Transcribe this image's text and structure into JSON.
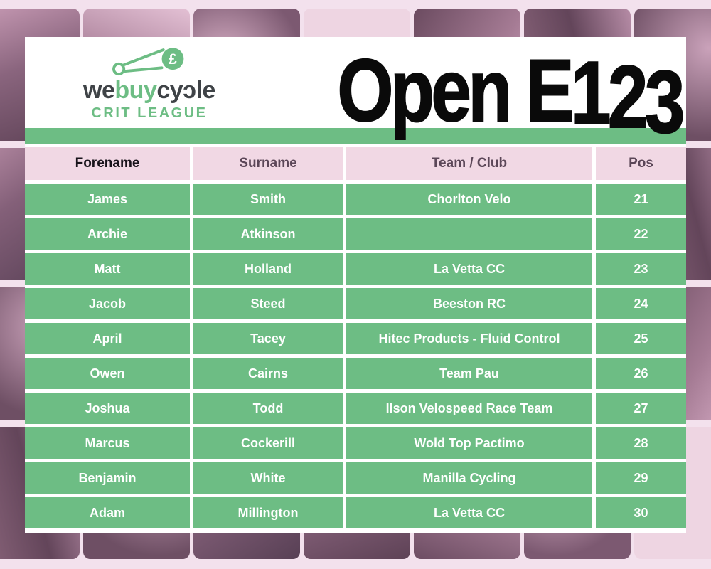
{
  "brand": {
    "word_we": "we",
    "word_buy": "buy",
    "word_cycle": "cyɔle",
    "tagline": "CRIT LEAGUE",
    "pound_symbol": "£"
  },
  "title": "Open E123",
  "table": {
    "headers": [
      "Forename",
      "Surname",
      "Team / Club",
      "Pos"
    ],
    "rows": [
      {
        "forename": "James",
        "surname": "Smith",
        "team": "Chorlton Velo",
        "pos": "21"
      },
      {
        "forename": "Archie",
        "surname": "Atkinson",
        "team": "",
        "pos": "22"
      },
      {
        "forename": "Matt",
        "surname": "Holland",
        "team": "La Vetta CC",
        "pos": "23"
      },
      {
        "forename": "Jacob",
        "surname": "Steed",
        "team": "Beeston RC",
        "pos": "24"
      },
      {
        "forename": "April",
        "surname": "Tacey",
        "team": "Hitec Products - Fluid Control",
        "pos": "25"
      },
      {
        "forename": "Owen",
        "surname": "Cairns",
        "team": "Team Pau",
        "pos": "26"
      },
      {
        "forename": "Joshua",
        "surname": "Todd",
        "team": "Ilson Velospeed Race Team",
        "pos": "27"
      },
      {
        "forename": "Marcus",
        "surname": "Cockerill",
        "team": "Wold Top Pactimo",
        "pos": "28"
      },
      {
        "forename": "Benjamin",
        "surname": "White",
        "team": "Manilla Cycling",
        "pos": "29"
      },
      {
        "forename": "Adam",
        "surname": "Millington",
        "team": "La Vetta CC",
        "pos": "30"
      }
    ]
  },
  "colors": {
    "green": "#6dbd84",
    "pink_base": "#f3e1ed",
    "pink_header_cell": "#f1d8e4",
    "header_text": "#5c4758",
    "row_text": "#ffffff",
    "title_color": "#0a0a0a"
  }
}
